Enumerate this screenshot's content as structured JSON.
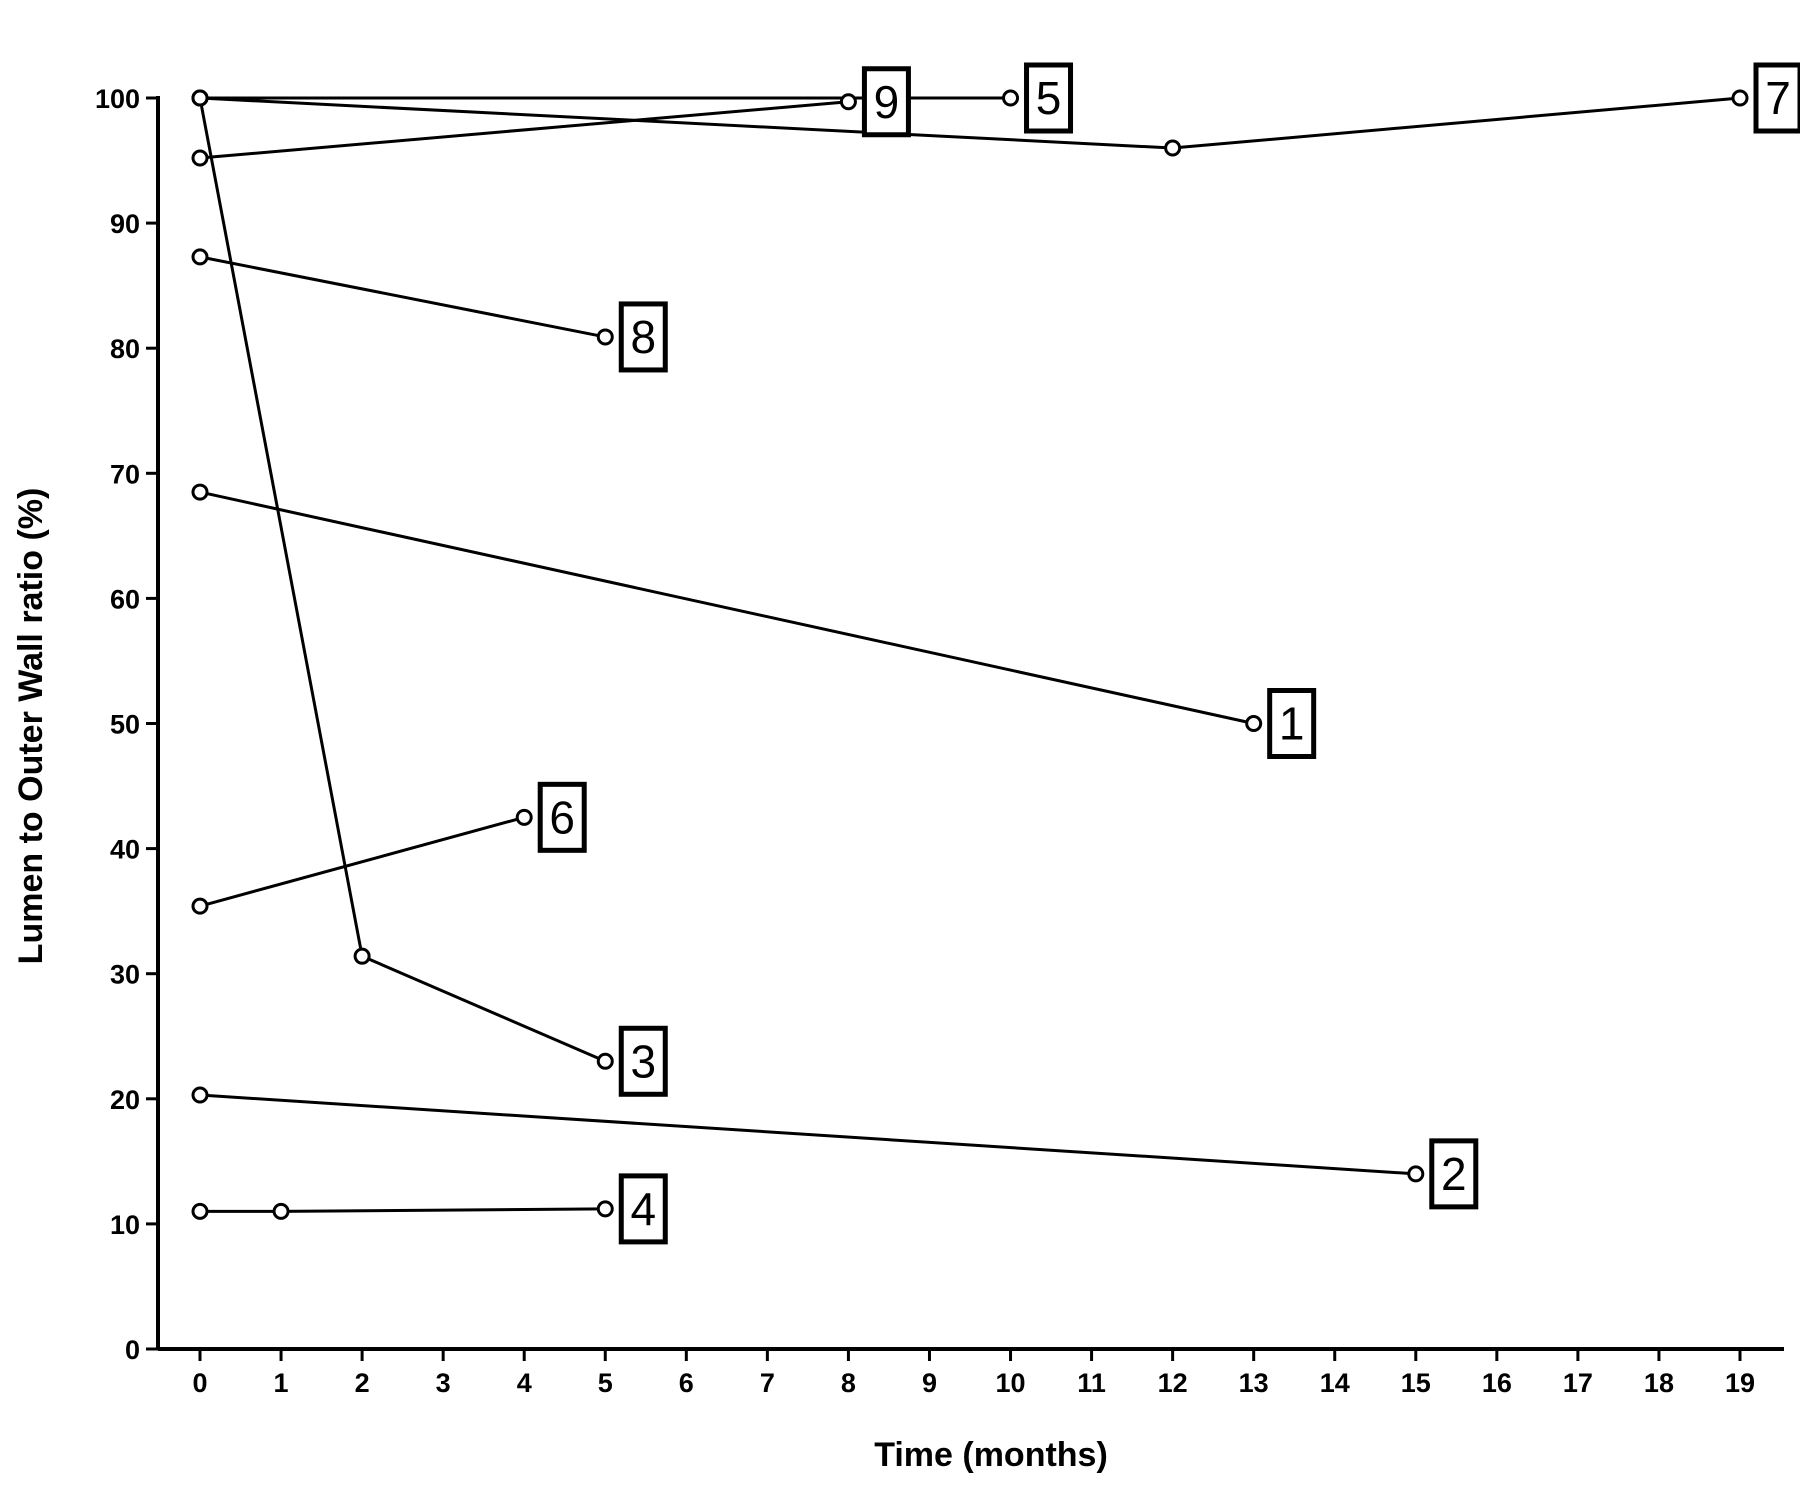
{
  "chart_data": {
    "type": "line",
    "title": "",
    "xlabel": "Time (months)",
    "ylabel": "Lumen to Outer Wall ratio (%)",
    "xlim": [
      0,
      19
    ],
    "ylim": [
      0,
      100
    ],
    "x_ticks": [
      0,
      1,
      2,
      3,
      4,
      5,
      6,
      7,
      8,
      9,
      10,
      11,
      12,
      13,
      14,
      15,
      16,
      17,
      18,
      19
    ],
    "y_ticks": [
      0,
      10,
      20,
      30,
      40,
      50,
      60,
      70,
      80,
      90,
      100
    ],
    "grid": false,
    "legend": "none",
    "marker": "open-circle",
    "series": [
      {
        "name": "1",
        "points": [
          [
            0,
            68.5
          ],
          [
            13,
            50
          ]
        ]
      },
      {
        "name": "2",
        "points": [
          [
            0,
            20.3
          ],
          [
            15,
            14
          ]
        ]
      },
      {
        "name": "3",
        "points": [
          [
            0,
            100
          ],
          [
            2,
            31.4
          ],
          [
            5,
            23
          ]
        ]
      },
      {
        "name": "4",
        "points": [
          [
            0,
            11
          ],
          [
            1,
            11
          ],
          [
            5,
            11.2
          ]
        ]
      },
      {
        "name": "5",
        "points": [
          [
            0,
            100
          ],
          [
            10,
            100
          ]
        ]
      },
      {
        "name": "6",
        "points": [
          [
            0,
            35.4
          ],
          [
            4,
            42.5
          ]
        ]
      },
      {
        "name": "7",
        "points": [
          [
            0,
            100
          ],
          [
            12,
            96
          ],
          [
            19,
            100
          ]
        ]
      },
      {
        "name": "8",
        "points": [
          [
            0,
            87.3
          ],
          [
            5,
            80.9
          ]
        ]
      },
      {
        "name": "9",
        "points": [
          [
            0,
            95.2
          ],
          [
            8,
            99.7
          ]
        ]
      }
    ]
  }
}
